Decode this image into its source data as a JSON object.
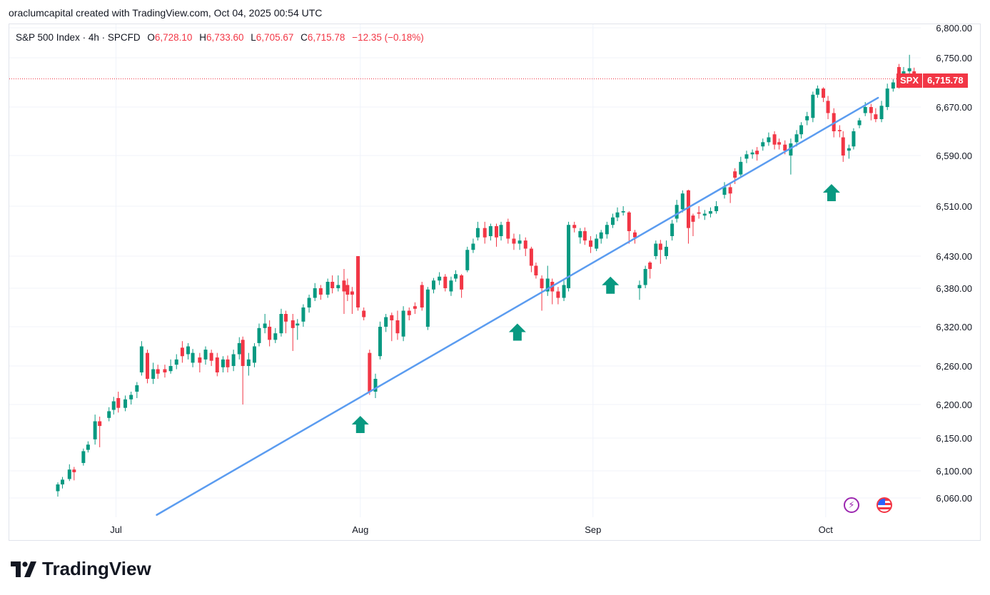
{
  "attribution": "oraclumcapital created with TradingView.com, Oct 04, 2025 00:54 UTC",
  "legend": {
    "symbol": "S&P 500 Index · 4h · SPCFD",
    "open_label": "O",
    "open": "6,728.10",
    "high_label": "H",
    "high": "6,733.60",
    "low_label": "L",
    "low": "6,705.67",
    "close_label": "C",
    "close": "6,715.78",
    "change": "−12.35 (−0.18%)"
  },
  "price_badge": {
    "symbol": "SPX",
    "value": "6,715.78"
  },
  "logo_text": "TradingView",
  "colors": {
    "up": "#089981",
    "down": "#f23645",
    "trendline": "#5b9cf0",
    "grid": "#f0f3fa",
    "last_price_line": "#f23645"
  },
  "chart_data": {
    "type": "candlestick",
    "title": "S&P 500 Index · 4h · SPCFD",
    "y_ticks": [
      6800,
      6750,
      6670,
      6590,
      6510,
      6430,
      6380,
      6320,
      6260,
      6200,
      6150,
      6100,
      6060
    ],
    "y_tick_labels": [
      "6,800.00",
      "6,750.00",
      "6,670.00",
      "6,590.00",
      "6,510.00",
      "6,430.00",
      "6,380.00",
      "6,320.00",
      "6,260.00",
      "6,200.00",
      "6,150.00",
      "6,100.00",
      "6,060.00"
    ],
    "x_ticks": [
      {
        "label": "Jul",
        "x": 5
      },
      {
        "label": "Aug",
        "x": 26
      },
      {
        "label": "Sep",
        "x": 46
      },
      {
        "label": "Oct",
        "x": 66
      }
    ],
    "last_price": 6715.78,
    "trendline": {
      "x1": 8.5,
      "y1": 6035,
      "x2": 70.5,
      "y2": 6685
    },
    "support_arrows": [
      {
        "x": 26,
        "price": 6183
      },
      {
        "x": 39.5,
        "price": 6325
      },
      {
        "x": 47.5,
        "price": 6398
      },
      {
        "x": 66.5,
        "price": 6545
      }
    ],
    "candles": [
      [
        0.0,
        6070,
        6080,
        6083,
        6062
      ],
      [
        0.4,
        6080,
        6087,
        6091,
        6074
      ],
      [
        1.0,
        6088,
        6102,
        6110,
        6085
      ],
      [
        1.4,
        6102,
        6098,
        6106,
        6086
      ],
      [
        2.2,
        6112,
        6130,
        6134,
        6108
      ],
      [
        2.6,
        6132,
        6140,
        6145,
        6128
      ],
      [
        3.2,
        6148,
        6175,
        6185,
        6140
      ],
      [
        3.6,
        6175,
        6168,
        6182,
        6136
      ],
      [
        4.4,
        6180,
        6190,
        6196,
        6175
      ],
      [
        4.8,
        6192,
        6205,
        6212,
        6185
      ],
      [
        5.2,
        6210,
        6195,
        6220,
        6188
      ],
      [
        5.8,
        6195,
        6208,
        6214,
        6190
      ],
      [
        6.3,
        6208,
        6215,
        6220,
        6200
      ],
      [
        6.8,
        6220,
        6230,
        6235,
        6210
      ],
      [
        7.2,
        6250,
        6290,
        6298,
        6245
      ],
      [
        7.7,
        6280,
        6240,
        6285,
        6233
      ],
      [
        8.2,
        6240,
        6255,
        6265,
        6232
      ],
      [
        8.6,
        6255,
        6248,
        6262,
        6240
      ],
      [
        9.2,
        6255,
        6250,
        6262,
        6242
      ],
      [
        9.7,
        6252,
        6260,
        6270,
        6248
      ],
      [
        10.2,
        6262,
        6270,
        6278,
        6255
      ],
      [
        10.7,
        6288,
        6275,
        6298,
        6265
      ],
      [
        11.2,
        6278,
        6290,
        6295,
        6270
      ],
      [
        11.6,
        6265,
        6280,
        6286,
        6258
      ],
      [
        12.2,
        6273,
        6265,
        6280,
        6250
      ],
      [
        12.7,
        6270,
        6285,
        6290,
        6262
      ],
      [
        13.2,
        6280,
        6268,
        6285,
        6260
      ],
      [
        13.7,
        6273,
        6250,
        6280,
        6244
      ],
      [
        14.2,
        6258,
        6270,
        6275,
        6250
      ],
      [
        14.6,
        6270,
        6258,
        6276,
        6250
      ],
      [
        15.1,
        6260,
        6278,
        6285,
        6252
      ],
      [
        15.6,
        6278,
        6295,
        6304,
        6270
      ],
      [
        15.9,
        6300,
        6260,
        6305,
        6200
      ],
      [
        16.4,
        6260,
        6270,
        6280,
        6245
      ],
      [
        16.9,
        6265,
        6290,
        6295,
        6258
      ],
      [
        17.3,
        6295,
        6318,
        6325,
        6290
      ],
      [
        17.8,
        6318,
        6325,
        6340,
        6310
      ],
      [
        18.2,
        6320,
        6300,
        6330,
        6290
      ],
      [
        18.7,
        6300,
        6310,
        6318,
        6295
      ],
      [
        19.2,
        6310,
        6340,
        6348,
        6305
      ],
      [
        19.6,
        6340,
        6328,
        6345,
        6310
      ],
      [
        20.2,
        6330,
        6318,
        6340,
        6283
      ],
      [
        20.6,
        6322,
        6325,
        6332,
        6300
      ],
      [
        21.1,
        6328,
        6350,
        6355,
        6320
      ],
      [
        21.6,
        6350,
        6365,
        6370,
        6342
      ],
      [
        22.1,
        6365,
        6380,
        6388,
        6360
      ],
      [
        22.6,
        6380,
        6370,
        6385,
        6362
      ],
      [
        23.2,
        6370,
        6390,
        6395,
        6365
      ],
      [
        23.6,
        6390,
        6380,
        6400,
        6372
      ],
      [
        24.1,
        6380,
        6385,
        6400,
        6375
      ],
      [
        24.6,
        6392,
        6375,
        6410,
        6340
      ],
      [
        24.9,
        6385,
        6370,
        6395,
        6360
      ],
      [
        25.3,
        6375,
        6370,
        6382,
        6340
      ],
      [
        25.8,
        6430,
        6350,
        6430,
        6345
      ],
      [
        26.3,
        6345,
        6335,
        6350,
        6330
      ],
      [
        26.8,
        6280,
        6220,
        6285,
        6215
      ],
      [
        27.3,
        6220,
        6240,
        6248,
        6210
      ],
      [
        27.7,
        6275,
        6320,
        6328,
        6270
      ],
      [
        28.2,
        6320,
        6335,
        6340,
        6312
      ],
      [
        28.7,
        6338,
        6330,
        6342,
        6298
      ],
      [
        29.2,
        6330,
        6310,
        6345,
        6300
      ],
      [
        29.7,
        6305,
        6345,
        6352,
        6298
      ],
      [
        30.2,
        6345,
        6338,
        6350,
        6330
      ],
      [
        30.7,
        6352,
        6348,
        6358,
        6340
      ],
      [
        31.3,
        6385,
        6350,
        6390,
        6345
      ],
      [
        31.8,
        6320,
        6378,
        6382,
        6315
      ],
      [
        32.3,
        6378,
        6392,
        6396,
        6372
      ],
      [
        32.8,
        6392,
        6398,
        6405,
        6385
      ],
      [
        33.3,
        6398,
        6380,
        6402,
        6375
      ],
      [
        33.8,
        6375,
        6392,
        6398,
        6368
      ],
      [
        34.2,
        6395,
        6402,
        6408,
        6390
      ],
      [
        34.7,
        6400,
        6378,
        6402,
        6365
      ],
      [
        35.2,
        6408,
        6440,
        6445,
        6405
      ],
      [
        35.7,
        6440,
        6450,
        6458,
        6435
      ],
      [
        36.1,
        6460,
        6475,
        6485,
        6455
      ],
      [
        36.7,
        6475,
        6460,
        6485,
        6450
      ],
      [
        37.2,
        6462,
        6478,
        6482,
        6455
      ],
      [
        37.7,
        6478,
        6460,
        6482,
        6445
      ],
      [
        38.1,
        6462,
        6480,
        6485,
        6455
      ],
      [
        38.7,
        6485,
        6458,
        6490,
        6450
      ],
      [
        39.2,
        6458,
        6450,
        6466,
        6440
      ],
      [
        39.7,
        6450,
        6455,
        6465,
        6440
      ],
      [
        40.2,
        6455,
        6442,
        6460,
        6430
      ],
      [
        40.7,
        6442,
        6415,
        6445,
        6405
      ],
      [
        41.1,
        6415,
        6400,
        6420,
        6395
      ],
      [
        41.6,
        6395,
        6380,
        6400,
        6345
      ],
      [
        42.1,
        6375,
        6395,
        6415,
        6368
      ],
      [
        42.5,
        6390,
        6375,
        6395,
        6355
      ],
      [
        43.0,
        6375,
        6365,
        6382,
        6355
      ],
      [
        43.5,
        6365,
        6385,
        6392,
        6360
      ],
      [
        43.9,
        6380,
        6480,
        6485,
        6375
      ],
      [
        44.4,
        6480,
        6475,
        6485,
        6468
      ],
      [
        44.9,
        6460,
        6470,
        6475,
        6450
      ],
      [
        45.3,
        6470,
        6455,
        6476,
        6448
      ],
      [
        45.8,
        6455,
        6445,
        6462,
        6435
      ],
      [
        46.3,
        6442,
        6458,
        6465,
        6438
      ],
      [
        46.7,
        6458,
        6468,
        6472,
        6450
      ],
      [
        47.2,
        6465,
        6480,
        6485,
        6458
      ],
      [
        47.7,
        6480,
        6492,
        6498,
        6475
      ],
      [
        48.1,
        6492,
        6500,
        6508,
        6486
      ],
      [
        48.6,
        6500,
        6502,
        6510,
        6495
      ],
      [
        49.1,
        6500,
        6470,
        6502,
        6450
      ],
      [
        49.6,
        6468,
        6460,
        6472,
        6450
      ],
      [
        50.0,
        6380,
        6385,
        6392,
        6362
      ],
      [
        50.5,
        6385,
        6410,
        6415,
        6380
      ],
      [
        50.9,
        6420,
        6410,
        6422,
        6395
      ],
      [
        51.4,
        6430,
        6450,
        6455,
        6425
      ],
      [
        51.8,
        6450,
        6440,
        6456,
        6418
      ],
      [
        52.3,
        6430,
        6445,
        6455,
        6425
      ],
      [
        52.8,
        6462,
        6482,
        6488,
        6455
      ],
      [
        53.2,
        6490,
        6512,
        6520,
        6484
      ],
      [
        53.7,
        6505,
        6530,
        6535,
        6500
      ],
      [
        54.2,
        6535,
        6475,
        6536,
        6450
      ],
      [
        54.6,
        6495,
        6485,
        6498,
        6462
      ],
      [
        55.1,
        6500,
        6498,
        6510,
        6490
      ],
      [
        55.6,
        6495,
        6498,
        6504,
        6488
      ],
      [
        56.1,
        6498,
        6502,
        6508,
        6492
      ],
      [
        56.6,
        6502,
        6510,
        6518,
        6498
      ],
      [
        57.3,
        6528,
        6540,
        6548,
        6522
      ],
      [
        57.8,
        6540,
        6530,
        6545,
        6515
      ],
      [
        58.2,
        6565,
        6555,
        6570,
        6545
      ],
      [
        58.7,
        6560,
        6580,
        6588,
        6555
      ],
      [
        59.2,
        6585,
        6592,
        6598,
        6578
      ],
      [
        59.7,
        6592,
        6595,
        6600,
        6585
      ],
      [
        60.1,
        6598,
        6592,
        6604,
        6582
      ],
      [
        60.6,
        6605,
        6612,
        6618,
        6598
      ],
      [
        61.1,
        6612,
        6620,
        6628,
        6606
      ],
      [
        61.6,
        6625,
        6608,
        6630,
        6600
      ],
      [
        62.0,
        6612,
        6608,
        6618,
        6600
      ],
      [
        62.5,
        6608,
        6598,
        6615,
        6592
      ],
      [
        63.0,
        6590,
        6610,
        6618,
        6560
      ],
      [
        63.5,
        6612,
        6625,
        6632,
        6605
      ],
      [
        63.9,
        6625,
        6640,
        6645,
        6618
      ],
      [
        64.4,
        6648,
        6655,
        6662,
        6640
      ],
      [
        64.9,
        6652,
        6690,
        6695,
        6645
      ],
      [
        65.3,
        6690,
        6700,
        6705,
        6685
      ],
      [
        65.8,
        6700,
        6685,
        6702,
        6678
      ],
      [
        66.2,
        6680,
        6660,
        6688,
        6650
      ],
      [
        66.7,
        6660,
        6630,
        6668,
        6620
      ],
      [
        67.2,
        6632,
        6630,
        6640,
        6620
      ],
      [
        67.5,
        6620,
        6590,
        6630,
        6580
      ],
      [
        68.0,
        6598,
        6602,
        6608,
        6585
      ],
      [
        68.4,
        6605,
        6630,
        6635,
        6600
      ],
      [
        68.9,
        6640,
        6648,
        6652,
        6635
      ],
      [
        69.4,
        6660,
        6670,
        6678,
        6655
      ],
      [
        69.9,
        6670,
        6660,
        6675,
        6648
      ],
      [
        70.3,
        6658,
        6650,
        6668,
        6645
      ],
      [
        70.8,
        6650,
        6672,
        6680,
        6645
      ],
      [
        71.3,
        6670,
        6700,
        6708,
        6665
      ],
      [
        71.8,
        6700,
        6710,
        6715,
        6695
      ],
      [
        72.3,
        6735,
        6718,
        6740,
        6700
      ],
      [
        72.7,
        6720,
        6728,
        6735,
        6715
      ],
      [
        73.2,
        6728,
        6733,
        6755,
        6720
      ],
      [
        73.6,
        6728,
        6716,
        6734,
        6706
      ]
    ]
  }
}
